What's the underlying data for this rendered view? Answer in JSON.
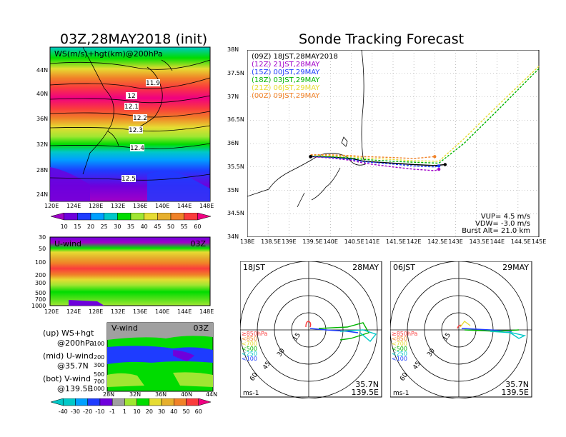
{
  "left": {
    "title": "03Z,28MAY2018 (init)",
    "map_label": "WS(m/s)+hgt(km)@200hPa",
    "contours": [
      "11.9",
      "12",
      "12.1",
      "12.2",
      "12.3",
      "12.4",
      "12.5"
    ],
    "lat_labels": [
      "44N",
      "40N",
      "36N",
      "32N",
      "28N",
      "24N"
    ],
    "lon_labels": [
      "120E",
      "124E",
      "128E",
      "132E",
      "136E",
      "140E",
      "144E",
      "148E"
    ],
    "colorbar_ticks": [
      "10",
      "15",
      "20",
      "25",
      "30",
      "35",
      "40",
      "45",
      "50",
      "55",
      "60"
    ],
    "colorbar_colors": [
      "#a000c8",
      "#6e00dc",
      "#1e3cff",
      "#00a0ff",
      "#00c8c8",
      "#00dc00",
      "#a0e632",
      "#e6dc32",
      "#e6af2d",
      "#f08228",
      "#fa3c3c",
      "#f00082"
    ],
    "uwind_label": "U-wind",
    "uwind_time": "03Z",
    "pressure_labels": [
      "30",
      "50",
      "100",
      "200",
      "300",
      "500",
      "700",
      "1000"
    ],
    "vwind_label": "V-wind",
    "vwind_time": "03Z",
    "vwind_pressure_labels": [
      "100",
      "200",
      "300",
      "500",
      "700",
      "1000"
    ],
    "vwind_lat_labels": [
      "28N",
      "32N",
      "36N",
      "40N",
      "44N"
    ],
    "legend": {
      "up": "(up) WS+hgt",
      "up2": "@200hPa",
      "mid": "(mid) U-wind",
      "mid2": "@35.7N",
      "bot": "(bot) V-wind",
      "bot2": "@139.5E"
    },
    "vcolorbar_ticks": [
      "-40",
      "-30",
      "-20",
      "-10",
      "-1",
      "1",
      "10",
      "20",
      "30",
      "40",
      "50",
      "60"
    ],
    "vcolorbar_colors": [
      "#00c8c8",
      "#00a0ff",
      "#1e3cff",
      "#6e00dc",
      "#a0a0a0",
      "#a0e632",
      "#00dc00",
      "#e6dc32",
      "#e6af2d",
      "#f08228",
      "#fa3c3c",
      "#f00082"
    ]
  },
  "right": {
    "title": "Sonde Tracking Forecast",
    "lat_labels": [
      "38N",
      "37.5N",
      "37N",
      "36.5N",
      "36N",
      "35.5N",
      "35N",
      "34.5N",
      "34N"
    ],
    "lon_labels": [
      "138E",
      "138.5E",
      "139E",
      "139.5E",
      "140E",
      "140.5E",
      "141E",
      "141.5E",
      "142E",
      "142.5E",
      "143E",
      "143.5E",
      "144E",
      "144.5E",
      "145E"
    ],
    "legend": [
      {
        "label": "(09Z) 18JST,28MAY2018",
        "color": "#000000"
      },
      {
        "label": "(12Z) 21JST,28MAY",
        "color": "#a000c8"
      },
      {
        "label": "(15Z) 00JST,29MAY",
        "color": "#1e3cff"
      },
      {
        "label": "(18Z) 03JST,29MAY",
        "color": "#00b400"
      },
      {
        "label": "(21Z) 06JST,29MAY",
        "color": "#e6dc32"
      },
      {
        "label": "(00Z) 09JST,29MAY",
        "color": "#f08228"
      }
    ],
    "vup": "VUP= 4.5 m/s",
    "vdw": "VDW= -3.0 m/s",
    "burst": "Burst Alt= 21.0 km",
    "hodo1": {
      "time": "18JST",
      "date": "28MAY",
      "loc1": "35.7N",
      "loc2": "139.5E",
      "unit": "ms-1"
    },
    "hodo2": {
      "time": "06JST",
      "date": "29MAY",
      "loc1": "35.7N",
      "loc2": "139.5E",
      "unit": "ms-1"
    },
    "ring_labels": [
      "15",
      "30",
      "45",
      "60"
    ],
    "level_legend": [
      "≥850hPa",
      "<850",
      "<700",
      "<500",
      "<250",
      "<100"
    ],
    "level_colors": [
      "#fa3c3c",
      "#f08228",
      "#e6dc32",
      "#00b400",
      "#00c8c8",
      "#1e3cff"
    ]
  },
  "chart_data": [
    {
      "type": "heatmap",
      "title": "03Z,28MAY2018 (init)",
      "subtitle": "WS(m/s)+hgt(km)@200hPa",
      "x_ticks": [
        "120E",
        "124E",
        "128E",
        "132E",
        "136E",
        "140E",
        "144E",
        "148E"
      ],
      "y_ticks": [
        "44N",
        "40N",
        "36N",
        "32N",
        "28N",
        "24N"
      ],
      "contour_labels_km": [
        11.9,
        12,
        12.1,
        12.2,
        12.3,
        12.4,
        12.5
      ],
      "colorbar_ms": [
        10,
        15,
        20,
        25,
        30,
        35,
        40,
        45,
        50,
        55,
        60
      ]
    },
    {
      "type": "line",
      "title": "Sonde Tracking Forecast",
      "xlim": [
        138,
        145
      ],
      "ylim": [
        34,
        38
      ],
      "series": [
        {
          "name": "(09Z) 18JST,28MAY2018",
          "x": [
            139.52,
            140,
            140.5,
            140.8,
            141.5,
            142,
            142.5,
            142.75
          ],
          "y": [
            35.72,
            35.71,
            35.68,
            35.62,
            35.58,
            35.55,
            35.53,
            35.55
          ]
        },
        {
          "name": "(12Z) 21JST,28MAY",
          "x": [
            139.52,
            140,
            140.5,
            140.8,
            141.5,
            142,
            142.5,
            142.6
          ],
          "y": [
            35.72,
            35.69,
            35.64,
            35.58,
            35.5,
            35.45,
            35.42,
            35.45
          ]
        },
        {
          "name": "(15Z) 00JST,29MAY",
          "x": [
            139.52,
            140,
            140.5,
            140.8,
            141.5,
            142,
            142.5,
            142.6
          ],
          "y": [
            35.73,
            35.7,
            35.66,
            35.61,
            35.56,
            35.52,
            35.5,
            35.52
          ]
        },
        {
          "name": "(18Z) 03JST,29MAY",
          "x": [
            139.52,
            140,
            140.5,
            140.8,
            141.5,
            142,
            142.6,
            143.2,
            144,
            145
          ],
          "y": [
            35.74,
            35.72,
            35.69,
            35.66,
            35.62,
            35.6,
            35.58,
            36.0,
            36.7,
            37.6
          ]
        },
        {
          "name": "(21Z) 06JST,29MAY",
          "x": [
            139.52,
            140,
            140.5,
            140.8,
            141.5,
            142,
            142.6,
            143.2,
            144,
            145
          ],
          "y": [
            35.75,
            35.74,
            35.72,
            35.69,
            35.66,
            35.63,
            35.62,
            36.1,
            36.8,
            37.65
          ]
        },
        {
          "name": "(00Z) 09JST,29MAY",
          "x": [
            139.52,
            140,
            140.5,
            140.8,
            141.5,
            142,
            142.5
          ],
          "y": [
            35.76,
            35.76,
            35.74,
            35.72,
            35.7,
            35.68,
            35.72
          ]
        }
      ]
    }
  ]
}
